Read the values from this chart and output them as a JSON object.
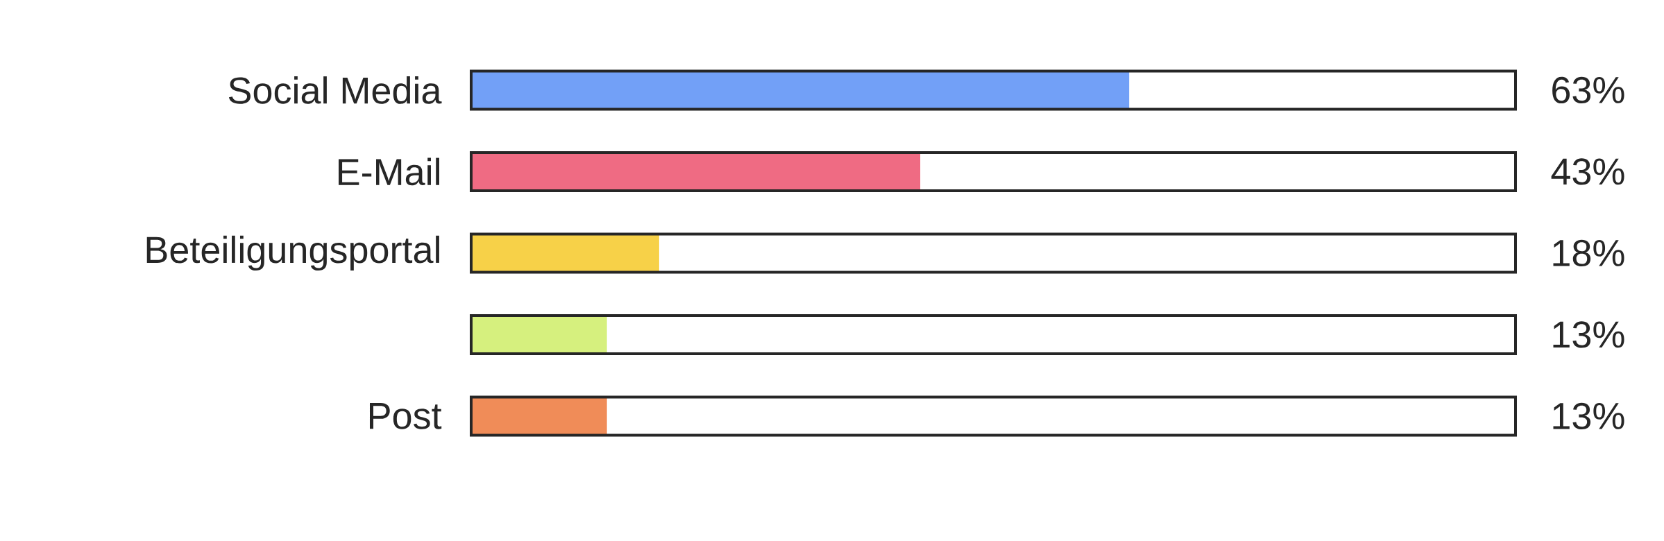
{
  "chart_data": {
    "type": "bar",
    "orientation": "horizontal",
    "categories": [
      "Social Media",
      "E-Mail",
      "Beteiligungsportal",
      null,
      "Post"
    ],
    "values": [
      63,
      43,
      18,
      13,
      13
    ],
    "colors": [
      "#72a0f7",
      "#ef6b83",
      "#f7d148",
      "#d6f07e",
      "#f08c58"
    ],
    "value_labels": [
      "63%",
      "43%",
      "18%",
      "13%",
      "13%"
    ],
    "xlim": [
      0,
      100
    ]
  }
}
